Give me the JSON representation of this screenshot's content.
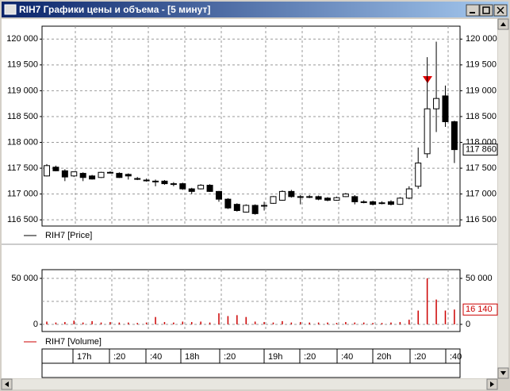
{
  "window": {
    "title": "RIH7 Графики цены и объема - [5 минут]"
  },
  "chart_data": [
    {
      "type": "candlestick",
      "legend": "RIH7 [Price]",
      "up_color": "#ffffff",
      "down_color": "#000000",
      "open": [
        117350,
        117520,
        117450,
        117350,
        117400,
        117350,
        117320,
        117420,
        117400,
        117380,
        117300,
        117270,
        117250,
        117250,
        117200,
        117200,
        117100,
        117100,
        117170,
        117050,
        116900,
        116800,
        116650,
        116780,
        116780,
        116820,
        116880,
        117050,
        116950,
        116950,
        116950,
        116920,
        116880,
        116950,
        116950,
        116850,
        116850,
        116830,
        116850,
        116800,
        116920,
        117150,
        117780,
        118650,
        118900,
        118400
      ],
      "high": [
        117580,
        117550,
        117480,
        117430,
        117420,
        117370,
        117430,
        117440,
        117420,
        117400,
        117330,
        117300,
        117280,
        117270,
        117230,
        117220,
        117120,
        117190,
        117190,
        117060,
        116920,
        116820,
        116800,
        116800,
        116850,
        116960,
        117070,
        117080,
        116980,
        116980,
        116970,
        116940,
        116950,
        117020,
        116980,
        116880,
        116870,
        116860,
        116880,
        116940,
        117150,
        117900,
        119650,
        119950,
        119100,
        118420
      ],
      "low": [
        117340,
        117440,
        117250,
        117330,
        117250,
        117280,
        117310,
        117400,
        117310,
        117280,
        117270,
        117240,
        117150,
        117180,
        117150,
        117080,
        117000,
        117090,
        117040,
        116850,
        116710,
        116660,
        116640,
        116600,
        116680,
        116810,
        116870,
        116930,
        116800,
        116920,
        116880,
        116860,
        116870,
        116940,
        116800,
        116820,
        116780,
        116800,
        116780,
        116790,
        116900,
        117100,
        117700,
        118200,
        118300,
        117600
      ],
      "close": [
        117550,
        117450,
        117330,
        117430,
        117320,
        117290,
        117420,
        117420,
        117320,
        117350,
        117300,
        117270,
        117250,
        117200,
        117200,
        117100,
        117050,
        117170,
        117050,
        116900,
        116730,
        116680,
        116780,
        116620,
        116780,
        116950,
        117050,
        116950,
        116950,
        116950,
        116900,
        116880,
        116930,
        117000,
        116850,
        116850,
        116800,
        116830,
        116800,
        116920,
        117100,
        117600,
        118650,
        118850,
        118400,
        117860
      ],
      "last": {
        "value": 117860,
        "label": "117 860"
      },
      "ylim": [
        116380,
        120250
      ],
      "yticks": [
        {
          "value": 116500,
          "label": "116 500"
        },
        {
          "value": 117000,
          "label": "117 000"
        },
        {
          "value": 117500,
          "label": "117 500"
        },
        {
          "value": 118000,
          "label": "118 000"
        },
        {
          "value": 118500,
          "label": "118 500"
        },
        {
          "value": 119000,
          "label": "119 000"
        },
        {
          "value": 119500,
          "label": "119 500"
        },
        {
          "value": 120000,
          "label": "120 000"
        }
      ],
      "grid": true
    },
    {
      "type": "bar",
      "legend": "RIH7 [Volume]",
      "color": "#cc0000",
      "values": [
        3000,
        2000,
        2500,
        4000,
        2000,
        3500,
        2000,
        2500,
        2000,
        2000,
        1500,
        2000,
        8000,
        2500,
        2000,
        3000,
        2500,
        3000,
        2000,
        12000,
        9000,
        10000,
        8000,
        3000,
        2500,
        2000,
        3500,
        2000,
        2500,
        2000,
        2000,
        2000,
        1500,
        2500,
        2000,
        2000,
        1500,
        1500,
        2000,
        2500,
        5000,
        15000,
        50000,
        27000,
        15000,
        16140
      ],
      "last": {
        "value": 16140,
        "label": "16 140"
      },
      "ylim": [
        -7800,
        59500
      ],
      "yticks": [
        0,
        {
          "value": 50000,
          "label": "50 000"
        }
      ],
      "ygrid": [
        0,
        25000,
        50000
      ],
      "grid": true
    }
  ],
  "time_axis": {
    "labels": [
      "17h",
      ":20",
      ":40",
      "18h",
      ":20",
      "19h",
      ":20",
      ":40",
      "20h",
      ":20",
      ":40"
    ]
  }
}
